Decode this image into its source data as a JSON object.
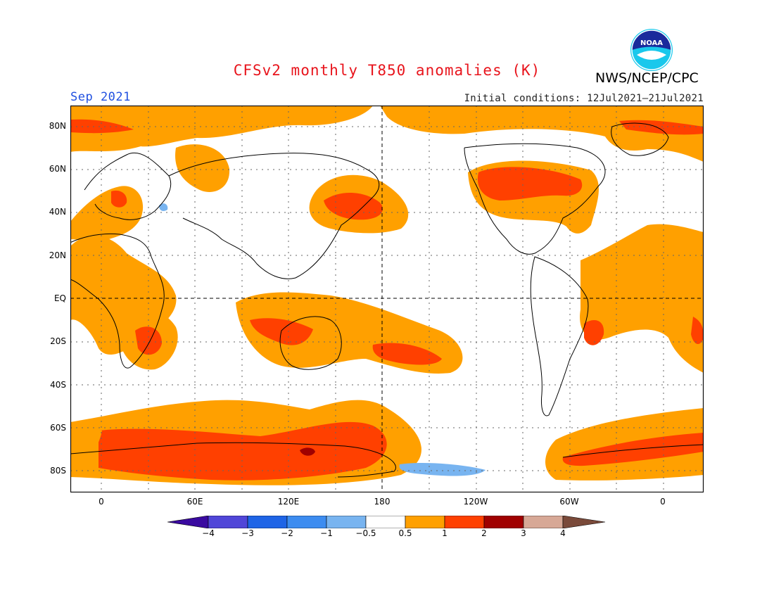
{
  "header": {
    "title": "CFSv2 monthly T850 anomalies (K)",
    "month": "Sep 2021",
    "initial_conditions": "Initial conditions: 12Jul2021–21Jul2021",
    "agency": "NWS/NCEP/CPC",
    "logo_text": "NOAA"
  },
  "map": {
    "lat_labels": [
      "80N",
      "60N",
      "40N",
      "20N",
      "EQ",
      "20S",
      "40S",
      "60S",
      "80S"
    ],
    "lon_labels": [
      "0",
      "60E",
      "120E",
      "180",
      "120W",
      "60W",
      "0"
    ],
    "gridlines": "dotted",
    "reference_lines": [
      "EQ",
      "180"
    ],
    "colors": {
      "warm1": "#ffa000",
      "warm2": "#ff4000",
      "warm3": "#a00000",
      "cool1": "#78b4f0"
    }
  },
  "colorbar": {
    "labels": [
      "−4",
      "−3",
      "−2",
      "−1",
      "−0.5",
      "0.5",
      "1",
      "2",
      "3",
      "4"
    ],
    "colors": [
      "#3a0aa0",
      "#5046d8",
      "#1e64e6",
      "#3c8cf0",
      "#78b4f0",
      "#ffffff",
      "#ffa000",
      "#ff4000",
      "#a00000",
      "#d7a896",
      "#7a4a3a"
    ]
  }
}
